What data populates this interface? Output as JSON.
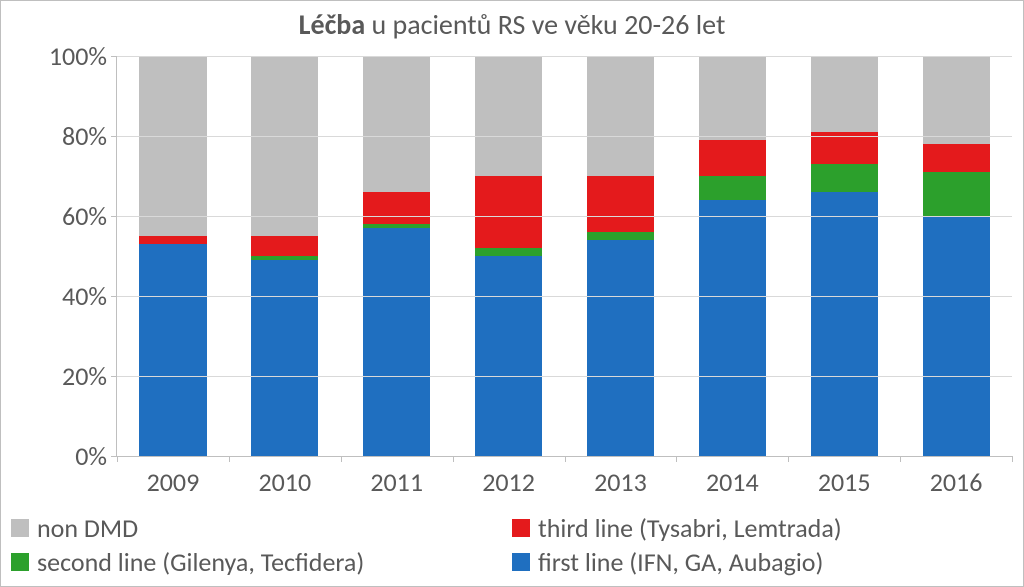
{
  "chart": {
    "type": "bar-stacked-100",
    "title_bold": "Léčba",
    "title_rest": " u pacientů RS ve věku 20-26 let",
    "title_fontsize": 28,
    "label_fontsize": 26,
    "background_color": "#ffffff",
    "grid_color": "#d9d9d9",
    "axis_color": "#bfbfbf",
    "text_color": "#595959",
    "bar_width": 0.6,
    "ylim": [
      0,
      100
    ],
    "ytick_step": 20,
    "yticks": [
      "0%",
      "20%",
      "40%",
      "60%",
      "80%",
      "100%"
    ],
    "categories": [
      "2009",
      "2010",
      "2011",
      "2012",
      "2013",
      "2014",
      "2015",
      "2016"
    ],
    "series": [
      {
        "key": "first",
        "label": "first line (IFN, GA, Aubagio)",
        "color": "#1f6fc0"
      },
      {
        "key": "second",
        "label": "second line (Gilenya, Tecfidera)",
        "color": "#2ca02c"
      },
      {
        "key": "third",
        "label": "third line (Tysabri, Lemtrada)",
        "color": "#e41a1c"
      },
      {
        "key": "nondmd",
        "label": "non DMD",
        "color": "#bfbfbf"
      }
    ],
    "legend_order": [
      "nondmd",
      "third",
      "second",
      "first"
    ],
    "values_pct": {
      "first": [
        53,
        49,
        57,
        50,
        54,
        64,
        66,
        60
      ],
      "second": [
        0,
        1,
        1,
        2,
        2,
        6,
        7,
        11
      ],
      "third": [
        2,
        5,
        8,
        18,
        14,
        9,
        8,
        7
      ],
      "nondmd": [
        45,
        45,
        34,
        30,
        30,
        21,
        19,
        22
      ]
    }
  }
}
